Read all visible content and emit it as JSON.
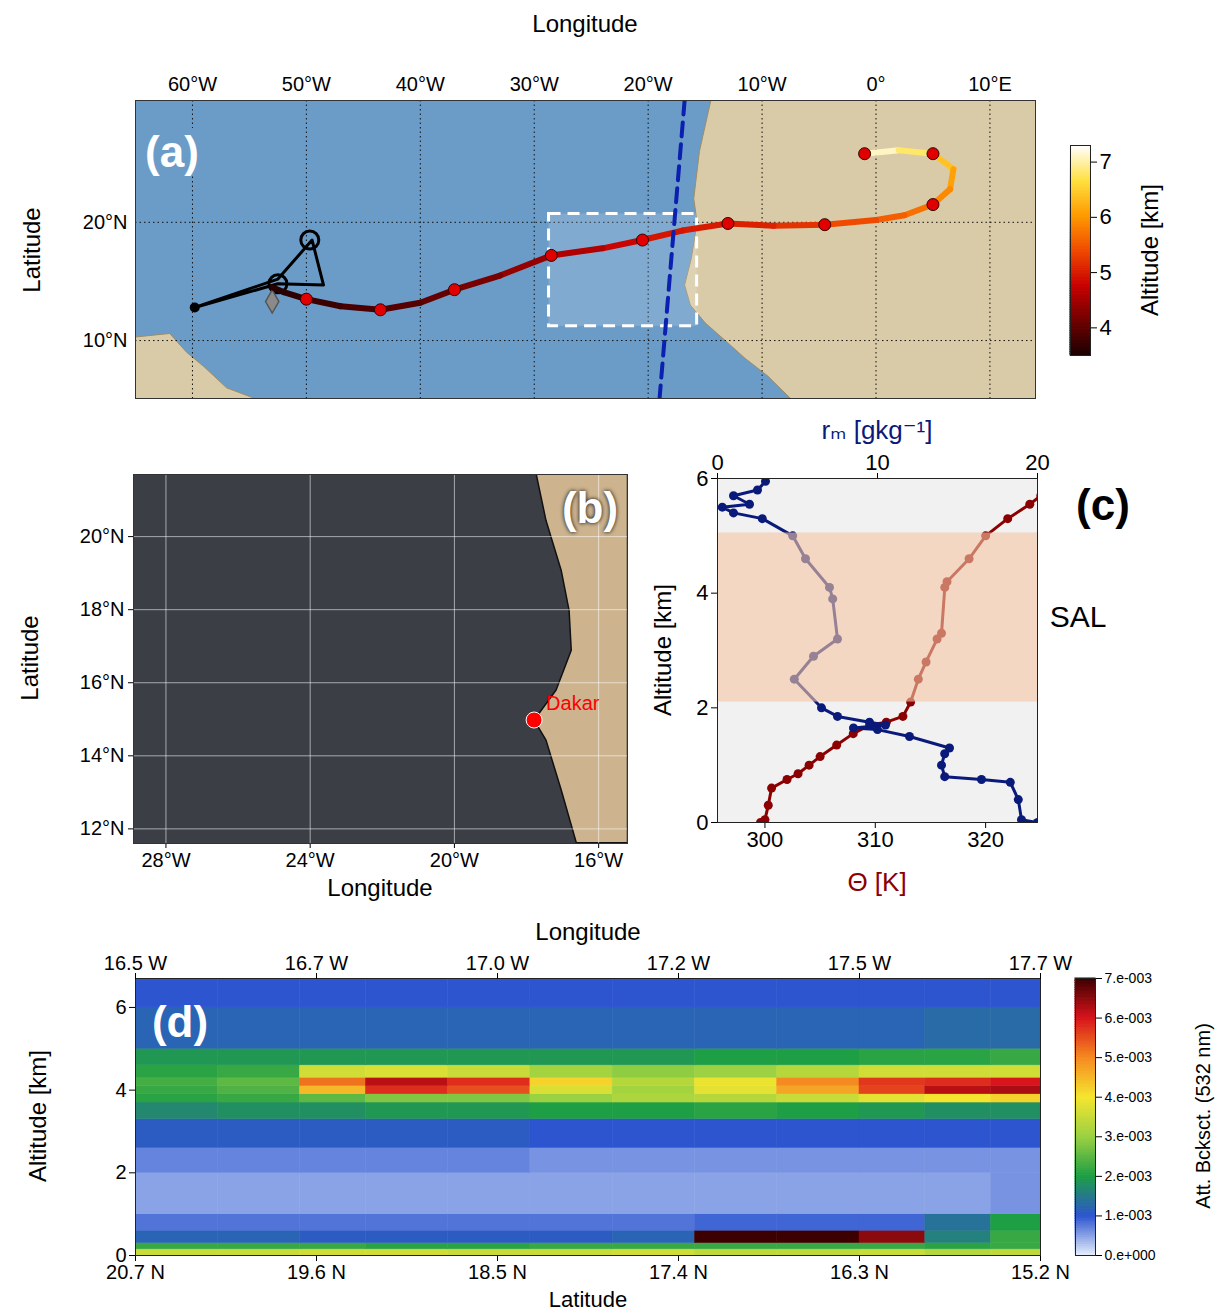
{
  "chart_data": [
    {
      "type": "map",
      "panel_label": "(a)",
      "x_label": "Longitude",
      "y_label": "Latitude",
      "xlim": [
        -65,
        14
      ],
      "ylim": [
        5.1,
        30.3
      ],
      "xticks": [
        {
          "value": -60,
          "label": "60°W"
        },
        {
          "value": -50,
          "label": "50°W"
        },
        {
          "value": -40,
          "label": "40°W"
        },
        {
          "value": -30,
          "label": "30°W"
        },
        {
          "value": -20,
          "label": "20°W"
        },
        {
          "value": -10,
          "label": "10°W"
        },
        {
          "value": 0,
          "label": "0°"
        },
        {
          "value": 10,
          "label": "10°E"
        }
      ],
      "yticks": [
        {
          "value": 10,
          "label": "10°N"
        },
        {
          "value": 20,
          "label": "20°N"
        }
      ],
      "grid": true,
      "land": [
        {
          "lon": [
            14,
            -14.5,
            -15.5,
            -16,
            -15.7,
            -16.2,
            -16.8,
            -16.3,
            -15,
            -13,
            -11.5,
            -9.5,
            -7.5,
            14
          ],
          "lat": [
            30.3,
            30.3,
            26,
            22,
            20,
            17,
            14.7,
            13,
            11.5,
            9.8,
            8.5,
            7,
            5.1,
            5.1
          ]
        },
        {
          "lon": [
            -65,
            -62,
            -60.5,
            -59,
            -57,
            -54.5,
            -65
          ],
          "lat": [
            10.3,
            10.6,
            9,
            7.8,
            6,
            5.1,
            5.1
          ]
        }
      ],
      "trajectory": {
        "lon": [
          -1,
          2,
          5,
          6.8,
          6.5,
          5,
          2.5,
          0,
          -4.5,
          -9,
          -13,
          -17,
          -20.5,
          -24,
          -28.5,
          -33,
          -37,
          -40,
          -43.5,
          -47,
          -50,
          -52,
          -53
        ],
        "lat": [
          25.8,
          26.1,
          25.8,
          24.5,
          22.8,
          21.5,
          20.6,
          20.2,
          19.8,
          19.7,
          19.9,
          19.3,
          18.5,
          17.8,
          17.2,
          15.5,
          14.3,
          13.2,
          12.6,
          12.9,
          13.5,
          14.1,
          14.5
        ],
        "altitude": [
          7.2,
          7.0,
          6.6,
          6.2,
          6.0,
          5.8,
          5.6,
          5.5,
          5.3,
          5.1,
          5.0,
          5.0,
          4.9,
          4.7,
          4.5,
          4.3,
          4.1,
          4.0,
          3.9,
          3.8,
          3.7,
          3.6,
          3.6
        ]
      },
      "markers": {
        "lon": [
          -1,
          5,
          5,
          -4.5,
          -13,
          -20.5,
          -28.5,
          -37,
          -43.5,
          -50
        ],
        "lat": [
          25.8,
          25.8,
          21.5,
          19.8,
          19.9,
          18.5,
          17.2,
          14.3,
          12.6,
          13.5
        ]
      },
      "flight_track": {
        "lon": [
          -59.8,
          -52.5,
          -49.5,
          -48.5,
          -52.5,
          -59.8
        ],
        "lat": [
          12.8,
          15.2,
          18.5,
          14.7,
          14.8,
          12.8
        ]
      },
      "circles": {
        "lon": [
          -49.7,
          -52.5
        ],
        "lat": [
          18.5,
          14.8
        ]
      },
      "track_start": {
        "lon": [
          -59.8
        ],
        "lat": [
          12.8
        ]
      },
      "diamond": {
        "lon": [
          -53
        ],
        "lat": [
          13.3
        ]
      },
      "box": {
        "lon": [
          -28.7,
          -15.7
        ],
        "lat": [
          11.2,
          20.7
        ]
      },
      "dashed_line": {
        "lon": [
          -16.8,
          -19.0
        ],
        "lat": [
          30.3,
          5.1
        ]
      },
      "colorbar": {
        "label": "Altitude [km]",
        "lim": [
          3.5,
          7.3
        ],
        "ticks": [
          4,
          5,
          6,
          7
        ]
      }
    },
    {
      "type": "map",
      "panel_label": "(b)",
      "x_label": "Longitude",
      "y_label": "Latitude",
      "xlim": [
        -28.9,
        -15.2
      ],
      "ylim": [
        11.6,
        21.7
      ],
      "xticks": [
        {
          "value": -28,
          "label": "28°W"
        },
        {
          "value": -24,
          "label": "24°W"
        },
        {
          "value": -20,
          "label": "20°W"
        },
        {
          "value": -16,
          "label": "16°W"
        }
      ],
      "yticks": [
        {
          "value": 12,
          "label": "12°N"
        },
        {
          "value": 14,
          "label": "14°N"
        },
        {
          "value": 16,
          "label": "16°N"
        },
        {
          "value": 18,
          "label": "18°N"
        },
        {
          "value": 20,
          "label": "20°N"
        }
      ],
      "grid": true,
      "land": [
        {
          "lon": [
            -17.73,
            -17.46,
            -17.04,
            -16.82,
            -16.76,
            -17.18,
            -17.79,
            -17.46,
            -17.04,
            -16.62,
            -15.2,
            -15.2
          ],
          "lat": [
            21.7,
            20.44,
            19.08,
            17.98,
            16.89,
            15.8,
            14.98,
            14.43,
            13.07,
            11.62,
            11.62,
            21.7
          ]
        }
      ],
      "places": [
        {
          "name": "Dakar",
          "lon": -17.79,
          "lat": 14.98
        }
      ]
    },
    {
      "type": "line",
      "panel_label": "(c)",
      "x_label": "Θ [K]",
      "x2_label": "rₘ [gkg⁻¹]",
      "y_label": "Altitude [km]",
      "xlim": [
        295.7,
        324.7
      ],
      "xticks": [
        300,
        310,
        320
      ],
      "x2lim": [
        0,
        20
      ],
      "x2ticks": [
        0,
        10,
        20
      ],
      "ylim": [
        0,
        6
      ],
      "yticks": [
        0,
        2,
        4,
        6
      ],
      "series": [
        {
          "color": "#8b0000",
          "marker": "circle",
          "line_style": "solid",
          "x": [
            299.6,
            300.0,
            300.3,
            300.6,
            302.0,
            303.0,
            304.0,
            305.0,
            306.5,
            308.0,
            309.5,
            311.0,
            312.5,
            313.2,
            313.9,
            314.6,
            315.6,
            316.0,
            316.3,
            316.5,
            318.5,
            320.0,
            322.0,
            324.0,
            325.0
          ],
          "y": [
            0.0,
            0.05,
            0.3,
            0.6,
            0.75,
            0.85,
            1.0,
            1.15,
            1.35,
            1.55,
            1.7,
            1.75,
            1.85,
            2.1,
            2.5,
            2.8,
            3.2,
            3.3,
            4.1,
            4.2,
            4.6,
            5.0,
            5.3,
            5.55,
            5.7
          ]
        },
        {
          "color": "#0a1a7a",
          "marker": "circle",
          "line_style": "solid",
          "axis": "x2",
          "x": [
            20.0,
            19.0,
            18.8,
            18.3,
            16.5,
            14.2,
            14.0,
            14.2,
            14.5,
            12.0,
            10.0,
            8.5,
            10.5,
            9.5,
            7.5,
            6.5,
            4.8,
            6.0,
            7.5,
            7.2,
            7.0,
            5.5,
            4.7,
            2.8,
            1.0,
            0.3,
            2.0,
            1.0,
            2.5,
            3.0
          ],
          "y": [
            0.0,
            0.05,
            0.4,
            0.7,
            0.75,
            0.8,
            1.0,
            1.2,
            1.3,
            1.5,
            1.62,
            1.65,
            1.7,
            1.75,
            1.85,
            2.0,
            2.5,
            2.9,
            3.2,
            3.9,
            4.1,
            4.6,
            5.0,
            5.3,
            5.4,
            5.5,
            5.55,
            5.7,
            5.8,
            5.95
          ]
        }
      ],
      "annotations": [
        {
          "text": "SAL",
          "y": [
            2.1,
            5.05
          ]
        }
      ]
    },
    {
      "type": "heatmap",
      "panel_label": "(d)",
      "x_label": "Latitude",
      "x2_label": "Longitude",
      "y_label": "Altitude [km]",
      "xlim": [
        20.7,
        15.2
      ],
      "xticks": [
        {
          "value": 20.7,
          "label": "20.7 N"
        },
        {
          "value": 19.6,
          "label": "19.6 N"
        },
        {
          "value": 18.5,
          "label": "18.5 N"
        },
        {
          "value": 17.4,
          "label": "17.4 N"
        },
        {
          "value": 16.3,
          "label": "16.3 N"
        },
        {
          "value": 15.2,
          "label": "15.2 N"
        }
      ],
      "x2lim": [
        16.5,
        17.7
      ],
      "x2ticks": [
        {
          "value": 16.5,
          "label": "16.5 W"
        },
        {
          "value": 16.74,
          "label": "16.7 W"
        },
        {
          "value": 16.98,
          "label": "17.0 W"
        },
        {
          "value": 17.22,
          "label": "17.2 W"
        },
        {
          "value": 17.46,
          "label": "17.5 W"
        },
        {
          "value": 17.7,
          "label": "17.7 W"
        }
      ],
      "ylim": [
        0,
        6.7
      ],
      "yticks": [
        0,
        2,
        4,
        6
      ],
      "latitude_bins": [
        20.7,
        20.2,
        19.7,
        19.3,
        18.8,
        18.3,
        17.8,
        17.3,
        16.8,
        16.3,
        15.9,
        15.5,
        15.2
      ],
      "altitude_bins": [
        0,
        0.15,
        0.3,
        0.6,
        1.0,
        2.0,
        2.6,
        3.3,
        3.7,
        3.9,
        4.1,
        4.3,
        4.6,
        5.0,
        6.0,
        6.7
      ],
      "cells": [
        [
          0.0035,
          0.0035,
          0.0036,
          0.0036,
          0.0035,
          0.0035,
          0.0036,
          0.0034,
          0.0034,
          0.0035,
          0.0033,
          0.0034
        ],
        [
          0.0022,
          0.0022,
          0.0022,
          0.0021,
          0.0021,
          0.0022,
          0.0022,
          0.0022,
          0.0022,
          0.0022,
          0.0021,
          0.0022
        ],
        [
          0.0012,
          0.0012,
          0.0011,
          0.0011,
          0.0011,
          0.0011,
          0.0012,
          0.0075,
          0.0075,
          0.0065,
          0.0016,
          0.0022
        ],
        [
          0.0008,
          0.0008,
          0.0008,
          0.0008,
          0.0008,
          0.0008,
          0.0008,
          0.0009,
          0.0009,
          0.0009,
          0.0014,
          0.002
        ],
        [
          0.0005,
          0.0005,
          0.0005,
          0.0005,
          0.0005,
          0.0005,
          0.0005,
          0.0005,
          0.0005,
          0.0005,
          0.0005,
          0.0006
        ],
        [
          0.0007,
          0.0007,
          0.0007,
          0.0007,
          0.0007,
          0.0006,
          0.0006,
          0.0006,
          0.0006,
          0.0006,
          0.0006,
          0.0006
        ],
        [
          0.0011,
          0.0011,
          0.0011,
          0.0011,
          0.0011,
          0.001,
          0.001,
          0.001,
          0.001,
          0.001,
          0.001,
          0.001
        ],
        [
          0.0017,
          0.0018,
          0.0018,
          0.0019,
          0.0019,
          0.002,
          0.002,
          0.0021,
          0.002,
          0.0019,
          0.0018,
          0.0018
        ],
        [
          0.0021,
          0.0022,
          0.0025,
          0.0028,
          0.0028,
          0.003,
          0.0032,
          0.0033,
          0.0035,
          0.0038,
          0.004,
          0.0042
        ],
        [
          0.0022,
          0.0024,
          0.0045,
          0.0058,
          0.0055,
          0.0037,
          0.0031,
          0.0038,
          0.0047,
          0.0056,
          0.0062,
          0.0063
        ],
        [
          0.0023,
          0.0025,
          0.0052,
          0.0062,
          0.0058,
          0.0042,
          0.0033,
          0.0039,
          0.005,
          0.0057,
          0.0058,
          0.006
        ],
        [
          0.0021,
          0.0022,
          0.0036,
          0.0037,
          0.0035,
          0.0031,
          0.0029,
          0.003,
          0.0033,
          0.0036,
          0.0036,
          0.0036
        ],
        [
          0.0019,
          0.0019,
          0.0019,
          0.0019,
          0.0019,
          0.0019,
          0.0019,
          0.002,
          0.002,
          0.0021,
          0.0021,
          0.0022
        ],
        [
          0.0012,
          0.0012,
          0.0012,
          0.0012,
          0.0012,
          0.0012,
          0.0012,
          0.0012,
          0.0012,
          0.0012,
          0.0013,
          0.0013
        ],
        [
          0.001,
          0.001,
          0.001,
          0.001,
          0.001,
          0.001,
          0.001,
          0.001,
          0.001,
          0.001,
          0.001,
          0.001
        ]
      ],
      "colorbar": {
        "label": "Att. Bcksct. (532 nm)",
        "lim": [
          0,
          0.007
        ],
        "ticks": [
          {
            "value": 0,
            "label": "0.e+000"
          },
          {
            "value": 0.001,
            "label": "1.e-003"
          },
          {
            "value": 0.002,
            "label": "2.e-003"
          },
          {
            "value": 0.003,
            "label": "3.e-003"
          },
          {
            "value": 0.004,
            "label": "4.e-003"
          },
          {
            "value": 0.005,
            "label": "5.e-003"
          },
          {
            "value": 0.006,
            "label": "6.e-003"
          },
          {
            "value": 0.007,
            "label": "7.e-003"
          }
        ]
      }
    }
  ]
}
